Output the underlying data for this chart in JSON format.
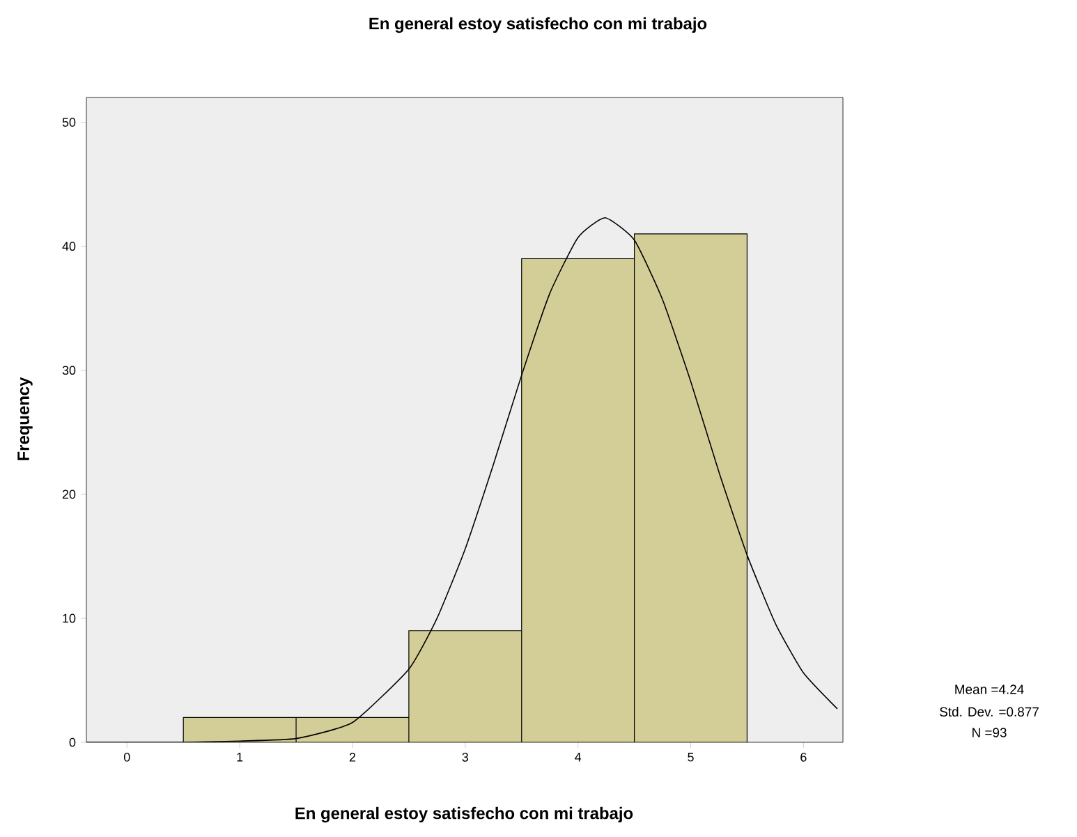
{
  "chart_data": {
    "type": "histogram",
    "title": "En general estoy satisfecho con mi trabajo",
    "xlabel": "En general estoy satisfecho con mi trabajo",
    "ylabel": "Frequency",
    "bins": [
      0.5,
      1.5,
      2.5,
      3.5,
      4.5,
      5.5
    ],
    "values": [
      2,
      2,
      9,
      39,
      41
    ],
    "color": "#d3ce97",
    "series": [
      {
        "type": "line",
        "color": "#000000",
        "x": [
          -0.36,
          0.5,
          1.0,
          1.5,
          2.0,
          2.5,
          2.75,
          3.0,
          3.25,
          3.5,
          3.75,
          4.0,
          4.24,
          4.5,
          4.75,
          5.0,
          5.25,
          5.5,
          5.75,
          6.0,
          6.3
        ],
        "values": [
          0,
          0,
          0.1,
          0.3,
          1.6,
          5.9,
          10,
          15.6,
          22.4,
          29.6,
          36.2,
          40.7,
          42.3,
          40.5,
          35.7,
          29.1,
          21.8,
          15.1,
          9.6,
          5.6,
          2.7
        ]
      }
    ],
    "xlim": [
      -0.36,
      6.35
    ],
    "ylim": [
      0,
      52
    ],
    "xticks": [
      0,
      1,
      2,
      3,
      4,
      5,
      6
    ],
    "yticks": [
      0,
      10,
      20,
      30,
      40,
      50
    ],
    "grid": false,
    "marker": "none",
    "line_style": "solid",
    "annotations": [
      "Mean =4.24",
      "Std. Dev. =0.877",
      "N =93"
    ]
  }
}
